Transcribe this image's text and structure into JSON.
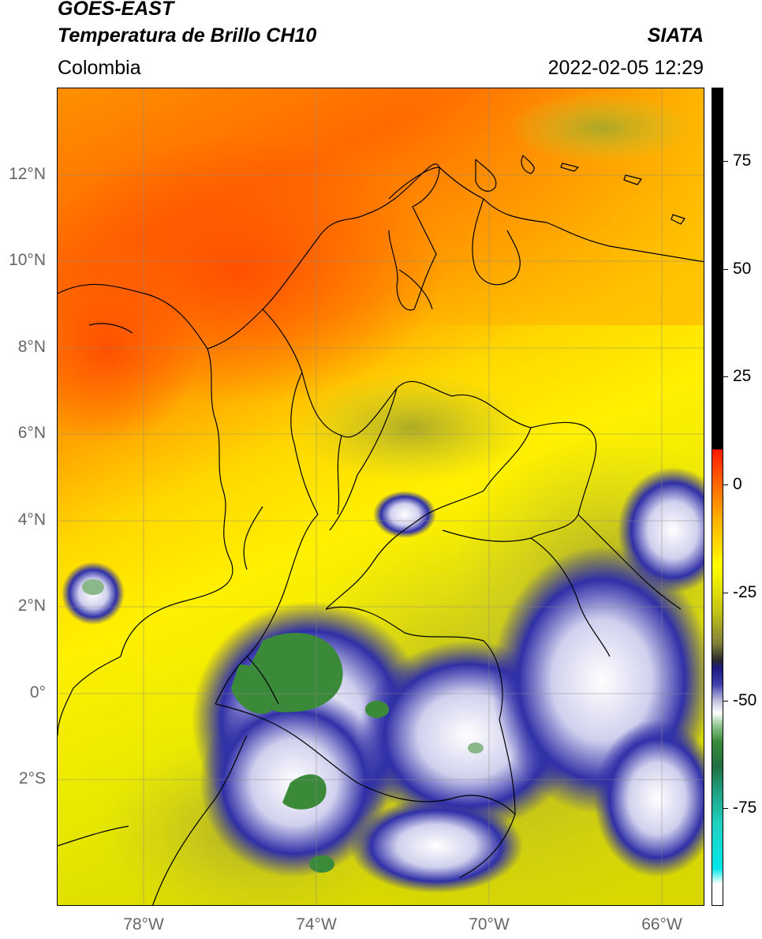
{
  "header": {
    "satellite": "GOES-EAST",
    "product": "Temperatura de Brillo CH10",
    "region": "Colombia",
    "agency": "SIATA",
    "datetime": "2022-02-05 12:29"
  },
  "map": {
    "lat_labels": [
      "12°N",
      "10°N",
      "8°N",
      "6°N",
      "4°N",
      "2°N",
      "0°",
      "2°S"
    ],
    "lon_labels": [
      "78°W",
      "74°W",
      "70°W",
      "66°W"
    ],
    "lat_values": [
      12,
      10,
      8,
      6,
      4,
      2,
      0,
      -2
    ],
    "lon_values": [
      -78,
      -74,
      -70,
      -66
    ],
    "lat_range": [
      -4.9,
      14.0
    ],
    "lon_range": [
      -80.0,
      -65.0
    ]
  },
  "colorbar": {
    "labels": [
      "75",
      "50",
      "25",
      "0",
      "-25",
      "-50",
      "-75"
    ],
    "values": [
      75,
      50,
      25,
      0,
      -25,
      -50,
      -75
    ],
    "range": [
      -100,
      90
    ]
  },
  "colors": {
    "warm": "#ff6a00",
    "mid": "#ffe600",
    "cool": "#b8b820",
    "cold_blue": "#2a2aa0",
    "cold_white": "#ffffff",
    "very_cold_green": "#3a8a3a"
  }
}
